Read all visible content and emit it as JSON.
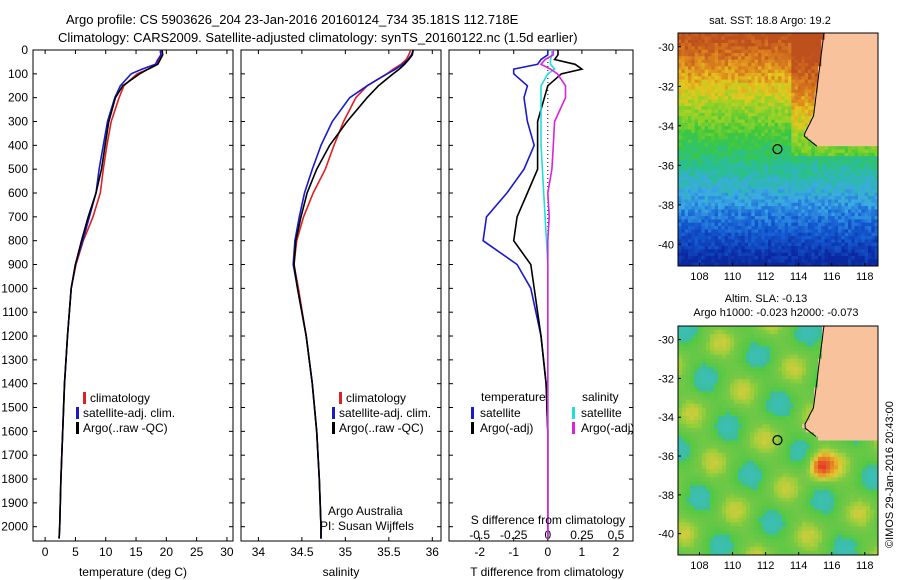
{
  "header": {
    "line1": "Argo profile: CS 5903626_204 23-Jan-2016 20160124_734 35.181S 112.718E",
    "line2": "Climatology: CARS2009. Satellite-adjusted climatology: synTS_20160122.nc (1.5d earlier)"
  },
  "colors": {
    "climatology": "#dd2222",
    "satellite": "#1a1acc",
    "argo": "#000000",
    "sal_satellite": "#22dddd",
    "sal_argo": "#dd22dd",
    "land": "#f7c29c"
  },
  "depth_axis": {
    "ylim": [
      0,
      2060
    ],
    "ticks": [
      "0",
      "100",
      "200",
      "300",
      "400",
      "500",
      "600",
      "700",
      "800",
      "900",
      "1000",
      "1100",
      "1200",
      "1300",
      "1400",
      "1500",
      "1600",
      "1700",
      "1800",
      "1900",
      "2000"
    ]
  },
  "chart_data": [
    {
      "type": "line",
      "xlabel": "temperature (deg C)",
      "xlim": [
        -2,
        31
      ],
      "xticks": [
        "0",
        "5",
        "10",
        "15",
        "20",
        "25",
        "30"
      ],
      "legend": [
        "climatology",
        "satellite-adj. clim.",
        "Argo(..raw -QC)"
      ],
      "series": [
        {
          "name": "climatology",
          "depth": [
            0,
            20,
            40,
            60,
            80,
            100,
            150,
            200,
            300,
            400,
            500,
            600,
            700,
            800,
            900,
            1000,
            1200,
            1400,
            1600,
            1800,
            2000,
            2050
          ],
          "values": [
            19.0,
            19.1,
            18.8,
            18.5,
            17.0,
            15.2,
            13.0,
            12.2,
            10.9,
            10.2,
            9.6,
            9.1,
            7.9,
            6.3,
            5.1,
            4.3,
            3.7,
            3.2,
            2.9,
            2.6,
            2.4,
            2.3
          ]
        },
        {
          "name": "satellite-adj. clim.",
          "depth": [
            0,
            20,
            40,
            60,
            80,
            100,
            150,
            200,
            300,
            400,
            500,
            600,
            700,
            800,
            900,
            1000,
            1200,
            1400,
            1600,
            1800,
            2000,
            2050
          ],
          "values": [
            19.0,
            19.1,
            18.6,
            18.2,
            16.0,
            14.2,
            12.4,
            11.5,
            10.3,
            9.6,
            8.9,
            8.4,
            7.3,
            6.2,
            5.0,
            4.3,
            3.7,
            3.2,
            2.9,
            2.6,
            2.4,
            2.3
          ]
        },
        {
          "name": "Argo(..raw -QC)",
          "depth": [
            0,
            20,
            40,
            60,
            80,
            100,
            150,
            200,
            300,
            400,
            500,
            600,
            700,
            800,
            900,
            1000,
            1200,
            1400,
            1600,
            1800,
            2000,
            2050
          ],
          "values": [
            19.3,
            19.4,
            19.0,
            18.6,
            17.0,
            15.6,
            12.8,
            11.6,
            10.5,
            9.9,
            9.3,
            8.4,
            7.1,
            6.0,
            5.0,
            4.3,
            3.7,
            3.2,
            2.9,
            2.6,
            2.4,
            2.3
          ]
        }
      ]
    },
    {
      "type": "line",
      "xlabel": "salinity",
      "xlim": [
        33.8,
        36.1
      ],
      "xticks": [
        "34",
        "34.5",
        "35",
        "35.5",
        "36"
      ],
      "legend": [
        "climatology",
        "satellite-adj. clim.",
        "Argo(..raw -QC)"
      ],
      "annotation": [
        "Argo Australia",
        "PI: Susan Wijffels"
      ],
      "series": [
        {
          "name": "climatology",
          "depth": [
            0,
            20,
            40,
            60,
            80,
            100,
            150,
            200,
            300,
            400,
            500,
            600,
            700,
            800,
            900,
            1000,
            1200,
            1400,
            1600,
            1800,
            2000,
            2050
          ],
          "values": [
            35.75,
            35.73,
            35.7,
            35.64,
            35.55,
            35.48,
            35.25,
            35.12,
            34.98,
            34.87,
            34.77,
            34.63,
            34.52,
            34.44,
            34.41,
            34.46,
            34.55,
            34.62,
            34.67,
            34.7,
            34.72,
            34.72
          ]
        },
        {
          "name": "satellite-adj. clim.",
          "depth": [
            0,
            20,
            40,
            60,
            80,
            100,
            150,
            200,
            300,
            400,
            500,
            600,
            700,
            800,
            900,
            1000,
            1200,
            1400,
            1600,
            1800,
            2000,
            2050
          ],
          "values": [
            35.78,
            35.76,
            35.72,
            35.66,
            35.58,
            35.48,
            35.25,
            35.05,
            34.85,
            34.72,
            34.62,
            34.53,
            34.47,
            34.42,
            34.4,
            34.45,
            34.55,
            34.62,
            34.67,
            34.7,
            34.72,
            34.72
          ]
        },
        {
          "name": "Argo(..raw -QC)",
          "depth": [
            0,
            20,
            40,
            60,
            80,
            100,
            150,
            200,
            300,
            400,
            500,
            600,
            700,
            800,
            900,
            1000,
            1200,
            1400,
            1600,
            1800,
            2000,
            2050
          ],
          "values": [
            35.78,
            35.77,
            35.73,
            35.68,
            35.62,
            35.55,
            35.38,
            35.25,
            35.02,
            34.82,
            34.67,
            34.56,
            34.49,
            34.43,
            34.41,
            34.45,
            34.55,
            34.62,
            34.67,
            34.7,
            34.72,
            34.72
          ]
        }
      ]
    },
    {
      "type": "line",
      "xlabel": "T difference from climatology",
      "xlim": [
        -2.9,
        2.5
      ],
      "xticks": [
        "-2",
        "-1",
        "0",
        "1",
        "2"
      ],
      "top_label": "S difference from climatology",
      "top_ticks": [
        "-0.5",
        "-0.25",
        "0",
        "0.25",
        "0.5"
      ],
      "legend_temperature": [
        "temperature",
        "satellite",
        "Argo(-adj)"
      ],
      "legend_salinity": [
        "salinity",
        "satellite",
        "Argo(-adj)"
      ],
      "series": [
        {
          "name": "temperature satellite",
          "depth": [
            0,
            20,
            40,
            60,
            80,
            100,
            150,
            200,
            300,
            400,
            500,
            600,
            700,
            800,
            900,
            1000,
            1200,
            1400,
            1600,
            1800,
            2000,
            2050
          ],
          "values": [
            0,
            0,
            -0.2,
            -0.3,
            -1.0,
            -1.0,
            -0.6,
            -0.7,
            -0.6,
            -0.4,
            -0.7,
            -1.2,
            -1.8,
            -1.9,
            -0.9,
            -0.5,
            -0.2,
            -0.05,
            0,
            0,
            0,
            0
          ]
        },
        {
          "name": "temperature Argo(-adj)",
          "depth": [
            0,
            20,
            40,
            60,
            80,
            100,
            150,
            200,
            300,
            400,
            500,
            600,
            700,
            800,
            900,
            1000,
            1200,
            1400,
            1600,
            1800,
            2000,
            2050
          ],
          "values": [
            0.3,
            0.3,
            0.2,
            0.8,
            1.0,
            0.4,
            0,
            -0.1,
            -0.3,
            -0.3,
            -0.3,
            -0.6,
            -0.9,
            -1.0,
            -0.5,
            -0.4,
            -0.2,
            -0.05,
            0,
            0,
            0,
            0
          ]
        },
        {
          "name": "salinity satellite",
          "depth": [
            0,
            20,
            40,
            60,
            80,
            100,
            150,
            200,
            300,
            400,
            500,
            600,
            700,
            800,
            900,
            1000,
            1200,
            1400,
            1600,
            1800,
            2000,
            2050
          ],
          "values": [
            0.03,
            0.03,
            0.02,
            0.02,
            0.05,
            0,
            -0.05,
            -0.05,
            -0.05,
            -0.05,
            -0.04,
            -0.03,
            -0.02,
            -0.01,
            0,
            0,
            0,
            0,
            0,
            0,
            0,
            0
          ]
        },
        {
          "name": "salinity Argo(-adj)",
          "depth": [
            0,
            20,
            40,
            60,
            80,
            100,
            150,
            200,
            300,
            400,
            500,
            600,
            700,
            800,
            900,
            1000,
            1200,
            1400,
            1600,
            1800,
            2000,
            2050
          ],
          "values": [
            0.04,
            0.04,
            -0.02,
            -0.05,
            0.02,
            0.07,
            0.13,
            0.13,
            0.05,
            0.04,
            0.03,
            0,
            0.01,
            0,
            0,
            0,
            0,
            0,
            0,
            0,
            0,
            0
          ]
        }
      ]
    }
  ],
  "maps": {
    "sst": {
      "title": "sat. SST: 18.8 Argo: 19.2",
      "lat_ticks": [
        "-30",
        "-32",
        "-34",
        "-36",
        "-38",
        "-40"
      ],
      "lon_ticks": [
        "108",
        "110",
        "112",
        "114",
        "116",
        "118"
      ]
    },
    "sla": {
      "title_line1": "Altim. SLA: -0.13",
      "title_line2": "Argo h1000: -0.023 h2000: -0.073",
      "lat_ticks": [
        "-30",
        "-32",
        "-34",
        "-36",
        "-38",
        "-40"
      ],
      "lon_ticks": [
        "108",
        "110",
        "112",
        "114",
        "116",
        "118"
      ]
    },
    "argo_position": {
      "lat": -35.181,
      "lon": 112.718
    },
    "credit": "©IMOS 29-Jan-2016 20:43:00"
  }
}
